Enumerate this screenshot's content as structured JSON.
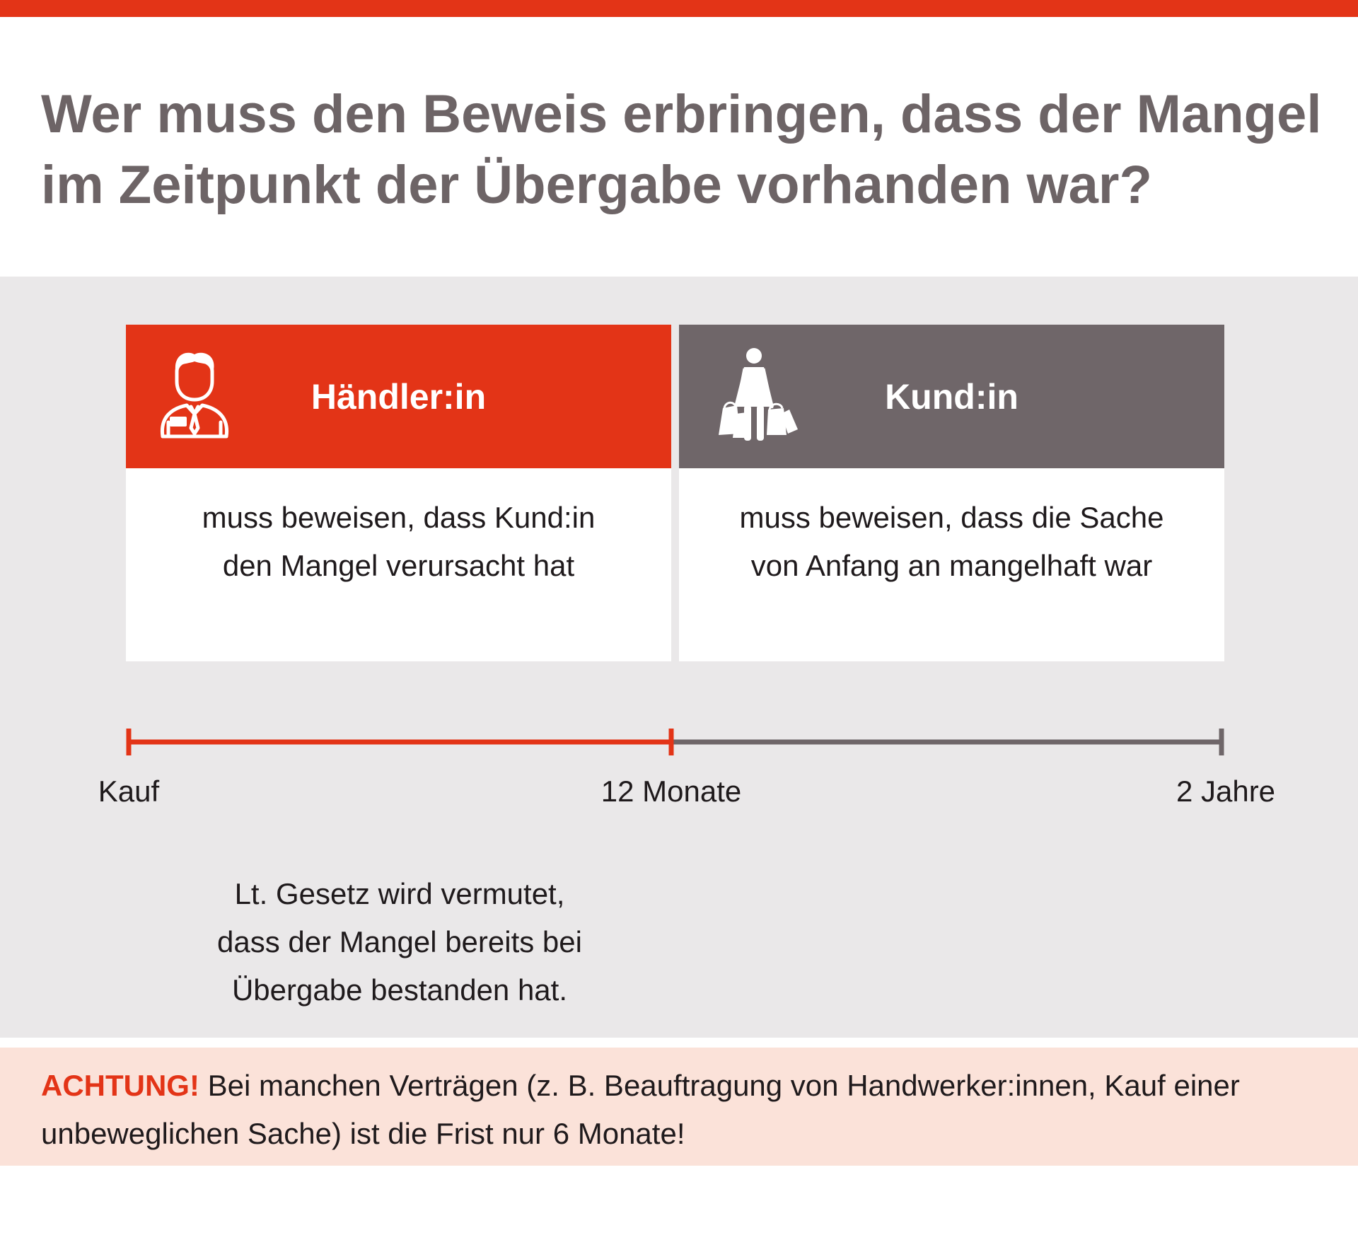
{
  "colors": {
    "accent": "#e33417",
    "gray_dark": "#6f6669",
    "panel_bg": "#eae8e9",
    "note_bg": "#fbe2d9",
    "title_text": "#6d6466"
  },
  "title": "Wer muss den Beweis erbringen, dass der Mangel im Zeitpunkt der Übergabe vorhanden war?",
  "cards": [
    {
      "label": "Händler:in",
      "icon": "merchant-person-icon",
      "text": "muss beweisen, dass Kund:in\nden Mangel verursacht hat"
    },
    {
      "label": "Kund:in",
      "icon": "shopper-with-bags-icon",
      "text": "muss beweisen, dass die Sache\nvon Anfang an mangelhaft war"
    }
  ],
  "timeline": {
    "ticks": [
      "Kauf",
      "12 Monate",
      "2 Jahre"
    ]
  },
  "presumption": "Lt. Gesetz wird vermutet,\ndass der Mangel bereits bei\nÜbergabe bestanden hat.",
  "note": {
    "strong": "ACHTUNG!",
    "text": "Bei manchen Verträgen (z. B. Beauftragung von Handwerker:innen, Kauf einer unbeweglichen Sache) ist die Frist nur 6 Monate!"
  }
}
